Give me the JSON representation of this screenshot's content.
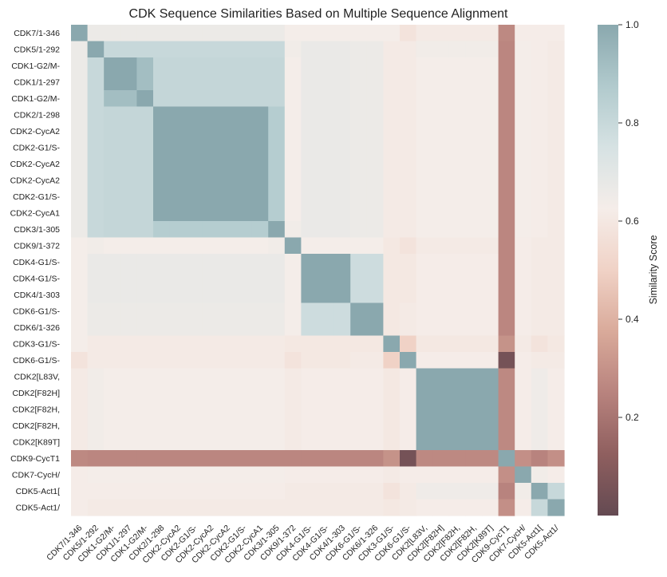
{
  "chart_data": {
    "type": "heatmap",
    "title": "CDK Sequence Similarities Based on Multiple Sequence Alignment",
    "colorbar_label": "Similarity Score",
    "colorbar_ticks": [
      "0.2",
      "0.4",
      "0.6",
      "0.8",
      "1.0"
    ],
    "vmin": 0.0,
    "vmax": 1.0,
    "colormap": [
      "#644a52",
      "#8f5f5f",
      "#b8837e",
      "#d9aa9a",
      "#f0d2c6",
      "#f5ede9",
      "#d6e2e3",
      "#b1cacd",
      "#8aa8ae"
    ],
    "labels": [
      "CDK7/1-346",
      "CDK5/1-292",
      "CDK1-G2/M-",
      "CDK1/1-297",
      "CDK1-G2/M-",
      "CDK2/1-298",
      "CDK2-CycA2",
      "CDK2-G1/S-",
      "CDK2-CycA2",
      "CDK2-CycA2",
      "CDK2-G1/S-",
      "CDK2-CycA1",
      "CDK3/1-305",
      "CDK9/1-372",
      "CDK4-G1/S-",
      "CDK4-G1/S-",
      "CDK4/1-303",
      "CDK6-G1/S-",
      "CDK6/1-326",
      "CDK3-G1/S-",
      "CDK6-G1/S-",
      "CDK2[L83V,",
      "CDK2[F82H]",
      "CDK2[F82H,",
      "CDK2[F82H,",
      "CDK2[K89T]",
      "CDK9-CycT1",
      "CDK7-CycH/",
      "CDK5-Act1[",
      "CDK5-Act1/"
    ],
    "groups": [
      0,
      1,
      2,
      2,
      3,
      4,
      4,
      4,
      4,
      4,
      4,
      4,
      5,
      6,
      7,
      7,
      7,
      8,
      8,
      9,
      10,
      11,
      11,
      11,
      11,
      11,
      12,
      13,
      14,
      15
    ],
    "group_similarity": [
      [
        1.0,
        0.66,
        0.66,
        0.66,
        0.66,
        0.66,
        0.63,
        0.63,
        0.63,
        0.63,
        0.58,
        0.61,
        0.27,
        0.62,
        0.62,
        0.62
      ],
      [
        0.66,
        1.0,
        0.8,
        0.8,
        0.8,
        0.8,
        0.64,
        0.67,
        0.66,
        0.61,
        0.61,
        0.64,
        0.26,
        0.63,
        0.62,
        0.61
      ],
      [
        0.66,
        0.8,
        1.0,
        0.92,
        0.81,
        0.81,
        0.63,
        0.67,
        0.66,
        0.61,
        0.61,
        0.63,
        0.26,
        0.63,
        0.62,
        0.61
      ],
      [
        0.66,
        0.8,
        0.92,
        1.0,
        0.81,
        0.81,
        0.63,
        0.67,
        0.66,
        0.61,
        0.61,
        0.63,
        0.26,
        0.63,
        0.62,
        0.61
      ],
      [
        0.66,
        0.8,
        0.81,
        0.81,
        1.0,
        0.86,
        0.63,
        0.67,
        0.66,
        0.61,
        0.61,
        0.63,
        0.26,
        0.63,
        0.62,
        0.61
      ],
      [
        0.66,
        0.8,
        0.81,
        0.81,
        0.86,
        1.0,
        0.64,
        0.67,
        0.66,
        0.61,
        0.61,
        0.63,
        0.26,
        0.63,
        0.62,
        0.61
      ],
      [
        0.63,
        0.64,
        0.63,
        0.63,
        0.63,
        0.64,
        1.0,
        0.63,
        0.63,
        0.6,
        0.58,
        0.61,
        0.26,
        0.62,
        0.61,
        0.61
      ],
      [
        0.63,
        0.67,
        0.67,
        0.67,
        0.67,
        0.67,
        0.63,
        1.0,
        0.78,
        0.6,
        0.6,
        0.62,
        0.26,
        0.62,
        0.61,
        0.61
      ],
      [
        0.63,
        0.66,
        0.66,
        0.66,
        0.66,
        0.66,
        0.63,
        0.78,
        1.0,
        0.6,
        0.61,
        0.62,
        0.26,
        0.62,
        0.61,
        0.61
      ],
      [
        0.63,
        0.61,
        0.61,
        0.61,
        0.61,
        0.61,
        0.6,
        0.6,
        0.6,
        1.0,
        0.5,
        0.6,
        0.3,
        0.61,
        0.58,
        0.6
      ],
      [
        0.58,
        0.61,
        0.61,
        0.61,
        0.61,
        0.61,
        0.58,
        0.6,
        0.61,
        0.5,
        1.0,
        0.62,
        0.05,
        0.62,
        0.61,
        0.61
      ],
      [
        0.61,
        0.64,
        0.63,
        0.63,
        0.63,
        0.63,
        0.61,
        0.62,
        0.62,
        0.6,
        0.62,
        1.0,
        0.27,
        0.62,
        0.65,
        0.62
      ],
      [
        0.27,
        0.26,
        0.26,
        0.26,
        0.26,
        0.26,
        0.26,
        0.26,
        0.26,
        0.3,
        0.05,
        0.27,
        1.0,
        0.29,
        0.25,
        0.29
      ],
      [
        0.62,
        0.63,
        0.63,
        0.63,
        0.63,
        0.63,
        0.62,
        0.62,
        0.62,
        0.61,
        0.62,
        0.62,
        0.29,
        1.0,
        0.64,
        0.62
      ],
      [
        0.62,
        0.62,
        0.62,
        0.62,
        0.62,
        0.62,
        0.61,
        0.61,
        0.61,
        0.58,
        0.61,
        0.65,
        0.25,
        0.64,
        1.0,
        0.8
      ],
      [
        0.62,
        0.61,
        0.61,
        0.61,
        0.61,
        0.61,
        0.61,
        0.61,
        0.61,
        0.6,
        0.61,
        0.62,
        0.29,
        0.62,
        0.8,
        1.0
      ]
    ]
  }
}
